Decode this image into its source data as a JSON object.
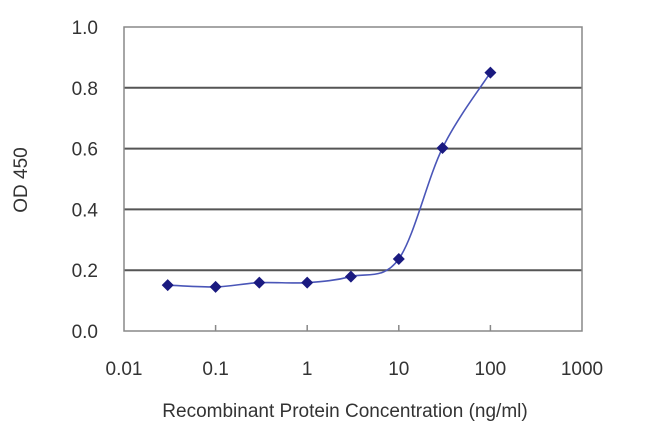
{
  "chart_data": {
    "type": "line",
    "title": "",
    "xlabel": "Recombinant Protein Concentration (ng/ml)",
    "ylabel": "OD 450",
    "x_scale": "log",
    "xlim": [
      0.01,
      1000
    ],
    "ylim": [
      0.0,
      1.0
    ],
    "x_ticks": [
      0.01,
      0.1,
      1,
      10,
      100,
      1000
    ],
    "x_tick_labels": [
      "0.01",
      "0.1",
      "1",
      "10",
      "100",
      "1000"
    ],
    "y_ticks": [
      0.0,
      0.2,
      0.4,
      0.6,
      0.8,
      1.0
    ],
    "y_tick_labels": [
      "0.0",
      "0.2",
      "0.4",
      "0.6",
      "0.8",
      "1.0"
    ],
    "grid": "horizontal",
    "series": [
      {
        "x": [
          0.03,
          0.1,
          0.3,
          1,
          3,
          10,
          30,
          100
        ],
        "y": [
          0.151,
          0.145,
          0.159,
          0.159,
          0.179,
          0.237,
          0.602,
          0.85
        ],
        "color": "#1a1a80",
        "marker": "diamond"
      }
    ]
  }
}
